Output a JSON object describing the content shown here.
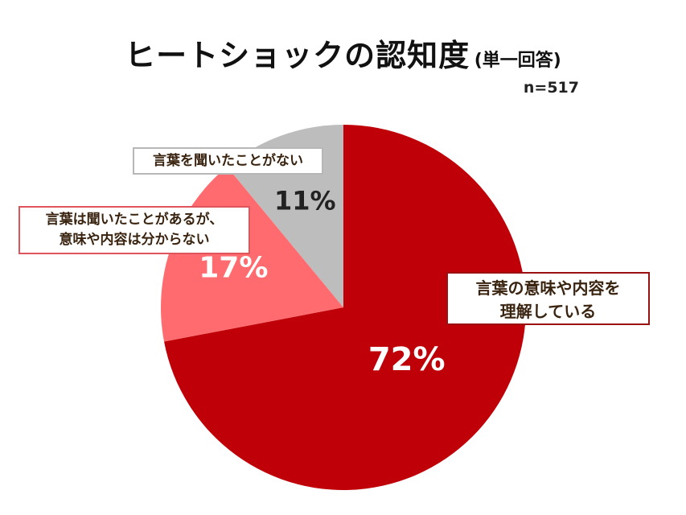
{
  "title": {
    "main": "ヒートショックの認知度",
    "sub": "(単一回答)"
  },
  "sample": "n=517",
  "chart_data": {
    "type": "pie",
    "start_angle_deg": 0,
    "direction": "clockwise",
    "slices": [
      {
        "label_lines": [
          "言葉の意味や内容を",
          "理解している"
        ],
        "value": 72,
        "value_label": "72%",
        "color": "#c00008",
        "label_color": "#ffffff"
      },
      {
        "label_lines": [
          "言葉は聞いたことがあるが、",
          "意味や内容は分からない"
        ],
        "value": 17,
        "value_label": "17%",
        "color": "#ff6b6e",
        "label_color": "#ffffff"
      },
      {
        "label_lines": [
          "言葉を聞いたことがない"
        ],
        "value": 11,
        "value_label": "11%",
        "color": "#bdbdbd",
        "label_color": "#222222"
      }
    ]
  }
}
